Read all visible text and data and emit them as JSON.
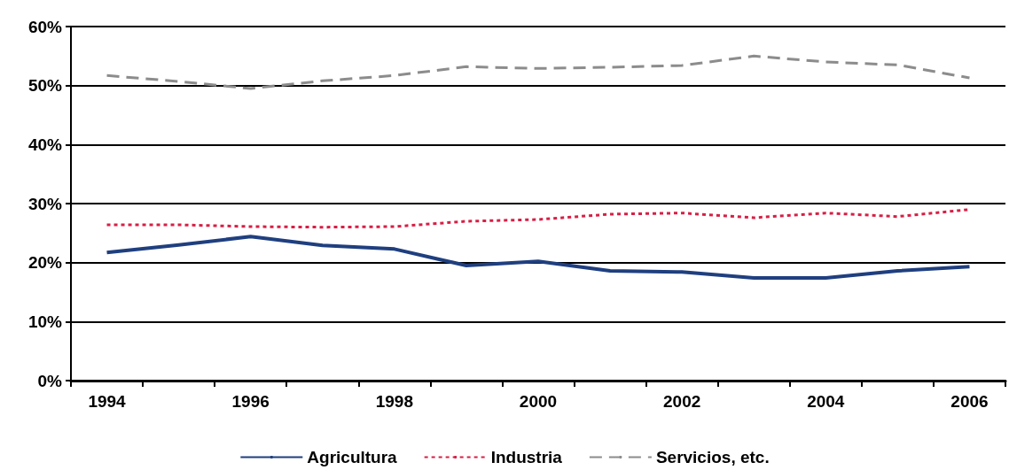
{
  "chart_data": {
    "type": "line",
    "categories": [
      "1994",
      null,
      "1996",
      null,
      "1998",
      null,
      "2000",
      null,
      "2002",
      null,
      "2004",
      null,
      "2006"
    ],
    "series": [
      {
        "name": "Agricultura",
        "color": "#1f3f7f",
        "line_style": "solid",
        "values": [
          21.7,
          23.0,
          24.4,
          22.9,
          22.3,
          19.5,
          20.2,
          18.6,
          18.4,
          17.4,
          17.4,
          18.6,
          19.3
        ]
      },
      {
        "name": "Industria",
        "color": "#d61f45",
        "line_style": "dotted",
        "values": [
          26.4,
          26.4,
          26.1,
          26.0,
          26.1,
          27.0,
          27.3,
          28.2,
          28.4,
          27.6,
          28.4,
          27.8,
          29.0
        ]
      },
      {
        "name": "Servicios, etc.",
        "color": "#8c8c8c",
        "line_style": "dashed",
        "values": [
          51.7,
          50.7,
          49.5,
          50.8,
          51.7,
          53.2,
          52.9,
          53.1,
          53.4,
          55.0,
          54.0,
          53.5,
          51.3
        ]
      }
    ],
    "ylim": [
      0,
      60
    ],
    "yticks": [
      {
        "value": 0,
        "label": "0%"
      },
      {
        "value": 10,
        "label": "10%"
      },
      {
        "value": 20,
        "label": "20%"
      },
      {
        "value": 30,
        "label": "30%"
      },
      {
        "value": 40,
        "label": "40%"
      },
      {
        "value": 50,
        "label": "50%"
      },
      {
        "value": 60,
        "label": "60%"
      }
    ],
    "grid": "y",
    "legend": "bottom",
    "marker": "none"
  }
}
